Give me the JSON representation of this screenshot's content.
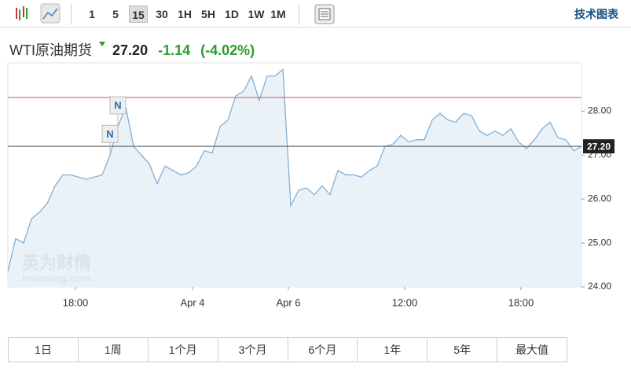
{
  "toolbar": {
    "intervals": [
      "1",
      "5",
      "15",
      "30",
      "1H",
      "5H",
      "1D",
      "1W",
      "1M"
    ],
    "active": 2,
    "link": "技术图表"
  },
  "header": {
    "name": "WTI原油期货",
    "change": "-1.14",
    "change_pct": "(-4.02%)"
  },
  "chart_data": {
    "type": "area",
    "x": [
      0,
      1,
      2,
      3,
      4,
      5,
      6,
      7,
      8,
      9,
      10,
      11,
      12,
      13,
      14,
      15,
      16,
      17,
      18,
      19,
      20,
      21,
      22,
      23,
      24,
      25,
      26,
      27,
      28,
      29,
      30,
      31,
      32,
      33,
      34,
      35,
      36,
      37,
      38,
      39,
      40,
      41,
      42,
      43,
      44,
      45,
      46,
      47,
      48,
      49,
      50,
      51,
      52,
      53,
      54,
      55,
      56,
      57,
      58,
      59,
      60,
      61,
      62,
      63,
      64,
      65,
      66,
      67,
      68,
      69,
      70,
      71,
      72,
      73
    ],
    "values": [
      24.36,
      25.1,
      25.0,
      25.55,
      25.7,
      25.9,
      26.3,
      26.55,
      26.55,
      26.5,
      26.45,
      26.5,
      26.55,
      27.0,
      27.65,
      28.1,
      27.2,
      27.0,
      26.8,
      26.35,
      26.75,
      26.65,
      26.55,
      26.6,
      26.75,
      27.1,
      27.05,
      27.65,
      27.8,
      28.35,
      28.45,
      28.8,
      28.25,
      28.8,
      28.8,
      28.95,
      25.85,
      26.2,
      26.25,
      26.1,
      26.3,
      26.1,
      26.65,
      26.55,
      26.55,
      26.5,
      26.65,
      26.75,
      27.2,
      27.25,
      27.45,
      27.3,
      27.35,
      27.35,
      27.8,
      27.95,
      27.8,
      27.75,
      27.95,
      27.9,
      27.55,
      27.45,
      27.55,
      27.45,
      27.6,
      27.3,
      27.15,
      27.35,
      27.6,
      27.75,
      27.4,
      27.35,
      27.1,
      27.2
    ],
    "line_color": "#7fb0d8",
    "fill_color": "#e6eff6",
    "xlim": [
      0,
      73
    ],
    "xticks": [
      {
        "value": 8.6,
        "label": "18:00"
      },
      {
        "value": 23.5,
        "label": "Apr 4"
      },
      {
        "value": 35.7,
        "label": "Apr 6"
      },
      {
        "value": 50.5,
        "label": "12:00"
      },
      {
        "value": 65.3,
        "label": "18:00"
      }
    ],
    "ylim": [
      24,
      29.1
    ],
    "yticks": [
      {
        "value": 24,
        "label": "24.00"
      },
      {
        "value": 25,
        "label": "25.00"
      },
      {
        "value": 26,
        "label": "26.00"
      },
      {
        "value": 27,
        "label": "27.00"
      },
      {
        "value": 28,
        "label": "28.00"
      }
    ],
    "reference_line": {
      "value": 28.31,
      "color": "#d9534f"
    },
    "current_price": {
      "value": 27.2,
      "label": "27.20"
    },
    "annotations": [
      {
        "x": 14,
        "label": "N"
      },
      {
        "x": 13,
        "label": "N"
      }
    ],
    "watermark": {
      "brand": "英为财情",
      "site": "Investing.com"
    }
  },
  "ranges": [
    "1日",
    "1周",
    "1个月",
    "3个月",
    "6个月",
    "1年",
    "5年",
    "最大值"
  ]
}
